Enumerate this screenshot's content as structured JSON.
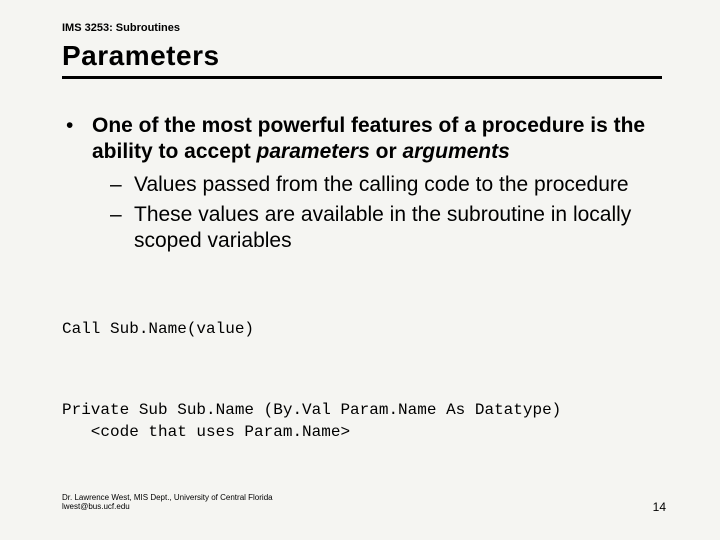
{
  "course": "IMS 3253: Subroutines",
  "title": "Parameters",
  "bullet_main_1": "One of the most powerful features of a procedure is the ability to accept ",
  "bullet_main_em1": "parameters",
  "bullet_main_2": " or ",
  "bullet_main_em2": "arguments",
  "sub1": "Values passed from the calling code to the procedure",
  "sub2": "These values are available in the subroutine in locally scoped variables",
  "code1": "Call Sub.Name(value)",
  "code2_l1": "Private Sub Sub.Name (By.Val Param.Name As Datatype)",
  "code2_l2": "   <code that uses Param.Name>",
  "footer_l1": "Dr. Lawrence West, MIS Dept., University of Central Florida",
  "footer_l2": "lwest@bus.ucf.edu",
  "pagenum": "14",
  "glyphs": {
    "bullet": "•",
    "dash": "–"
  }
}
